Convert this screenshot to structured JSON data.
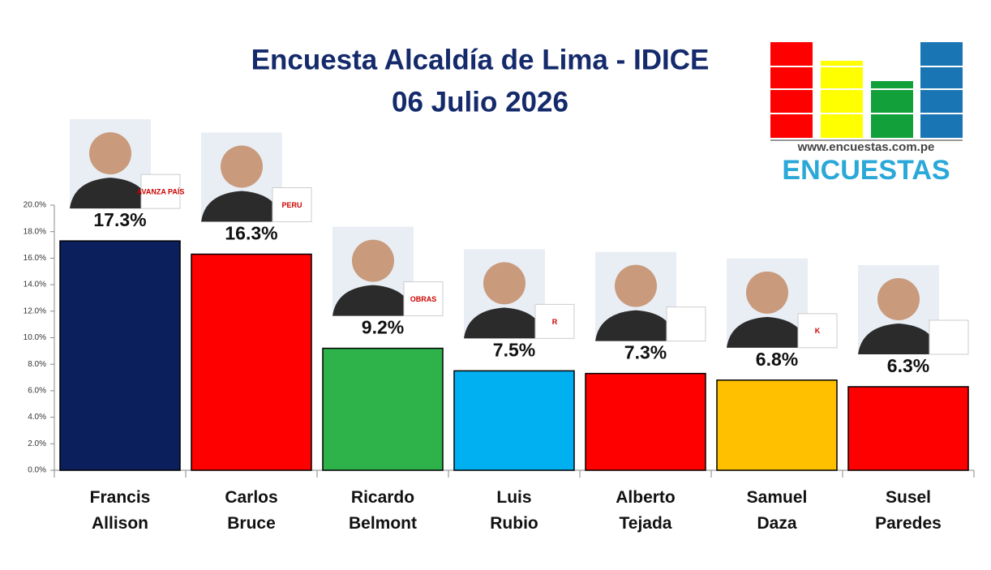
{
  "chart_data": {
    "type": "bar",
    "title": "Encuesta Alcaldía de Lima - IDICE",
    "subtitle": "06 Julio 2026",
    "categories": [
      "Francis Allison",
      "Carlos Bruce",
      "Ricardo Belmont",
      "Luis Rubio",
      "Alberto Tejada",
      "Samuel Daza",
      "Susel Paredes"
    ],
    "values": [
      17.3,
      16.3,
      9.2,
      7.5,
      7.3,
      6.8,
      6.3
    ],
    "value_labels": [
      "17.3%",
      "16.3%",
      "9.2%",
      "7.5%",
      "7.3%",
      "6.8%",
      "6.3%"
    ],
    "colors": [
      "#0b1f5c",
      "#ff0000",
      "#2db34a",
      "#00b0f0",
      "#ff0000",
      "#ffc000",
      "#ff0000"
    ],
    "ylim": [
      0,
      20
    ],
    "yticks": [
      {
        "value": 0,
        "label": "0.0%"
      },
      {
        "value": 2,
        "label": "2.0%"
      },
      {
        "value": 4,
        "label": "4.0%"
      },
      {
        "value": 6,
        "label": "6.0%"
      },
      {
        "value": 8,
        "label": "8.0%"
      },
      {
        "value": 10,
        "label": "10.0%"
      },
      {
        "value": 12,
        "label": "12.0%"
      },
      {
        "value": 14,
        "label": "14.0%"
      },
      {
        "value": 16,
        "label": "16.0%"
      },
      {
        "value": 18,
        "label": "18.0%"
      },
      {
        "value": 20,
        "label": "20.0%"
      }
    ],
    "party_logos": [
      "AVANZA PAÍS",
      "PERU",
      "OBRAS",
      "R",
      "",
      "K",
      ""
    ]
  },
  "brand": {
    "url": "www.encuestas.com.pe",
    "name": "ENCUESTAS"
  }
}
